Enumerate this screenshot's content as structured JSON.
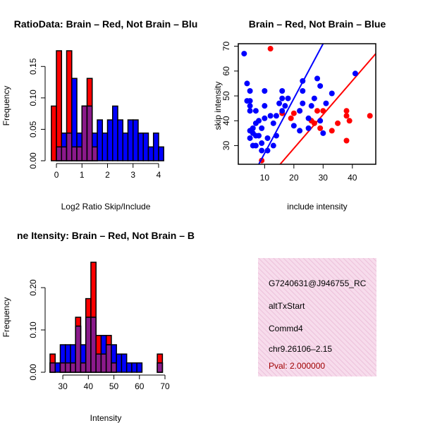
{
  "colors": {
    "red": "#ff0000",
    "blue": "#0000ff",
    "purple": "#8b1a8b",
    "pink_box": "#f5d6ea",
    "pval_text": "#a00000"
  },
  "chart_data": [
    {
      "type": "bar",
      "subtype": "overlaid-histogram",
      "title": "RatioData: Brain – Red, Not Brain – Blu",
      "xlabel": "Log2 Ratio Skip/Include",
      "ylabel": "Frequency",
      "xlim": [
        -0.25,
        4.25
      ],
      "ylim": [
        0,
        0.175
      ],
      "xticks": [
        0,
        1,
        2,
        3,
        4
      ],
      "yticks": [
        0.0,
        0.05,
        0.1,
        0.15
      ],
      "ytick_labels": [
        "0.00",
        "0.05",
        "0.10",
        "0.15"
      ],
      "bin_edges": [
        -0.2,
        0.0,
        0.2,
        0.4,
        0.6,
        0.8,
        1.0,
        1.2,
        1.4,
        1.6,
        1.8,
        2.0,
        2.2,
        2.4,
        2.6,
        2.8,
        3.0,
        3.2,
        3.4,
        3.6,
        3.8,
        4.0,
        4.2
      ],
      "series": [
        {
          "name": "Brain",
          "color": "red",
          "values": [
            0.087,
            0.175,
            0.022,
            0.175,
            0.022,
            0.022,
            0.087,
            0.131,
            0.022,
            0.0,
            0.0,
            0.0,
            0.0,
            0.0,
            0.0,
            0.0,
            0.0,
            0.0,
            0.0,
            0.0,
            0.0,
            0.0
          ]
        },
        {
          "name": "Not Brain",
          "color": "blue",
          "values": [
            0.0,
            0.022,
            0.044,
            0.044,
            0.131,
            0.044,
            0.087,
            0.087,
            0.044,
            0.065,
            0.044,
            0.065,
            0.087,
            0.065,
            0.044,
            0.065,
            0.065,
            0.044,
            0.044,
            0.022,
            0.044,
            0.022
          ]
        }
      ]
    },
    {
      "type": "scatter",
      "title": "Brain – Red, Not Brain – Blue",
      "xlabel": "include intensity",
      "ylabel": "skip intensity",
      "xlim": [
        1,
        48
      ],
      "ylim": [
        22.5,
        71
      ],
      "xticks": [
        10,
        20,
        30,
        40
      ],
      "yticks": [
        30,
        40,
        50,
        60,
        70
      ],
      "series": [
        {
          "name": "Brain",
          "color": "red",
          "points": [
            [
              12,
              69
            ],
            [
              9,
              24
            ],
            [
              19,
              41
            ],
            [
              16,
              43
            ],
            [
              20,
              43
            ],
            [
              22,
              44
            ],
            [
              26,
              40
            ],
            [
              27,
              39
            ],
            [
              28,
              44
            ],
            [
              29,
              37
            ],
            [
              30,
              44
            ],
            [
              33,
              36
            ],
            [
              35,
              39
            ],
            [
              38,
              44
            ],
            [
              38,
              42
            ],
            [
              38,
              32
            ],
            [
              39,
              40
            ],
            [
              46,
              42
            ]
          ],
          "fit_line": [
            [
              12,
              18
            ],
            [
              48,
              67
            ]
          ]
        },
        {
          "name": "Not Brain",
          "color": "blue",
          "points": [
            [
              3,
              67
            ],
            [
              4,
              55
            ],
            [
              4,
              48
            ],
            [
              5,
              44
            ],
            [
              5,
              46
            ],
            [
              5,
              48
            ],
            [
              5,
              52
            ],
            [
              5,
              36
            ],
            [
              5,
              33
            ],
            [
              6,
              30
            ],
            [
              6,
              35
            ],
            [
              6,
              37
            ],
            [
              7,
              30
            ],
            [
              7,
              34
            ],
            [
              7,
              39
            ],
            [
              7,
              44
            ],
            [
              8,
              34
            ],
            [
              8,
              40
            ],
            [
              9,
              28
            ],
            [
              9,
              31
            ],
            [
              9,
              37
            ],
            [
              10,
              41
            ],
            [
              10,
              46
            ],
            [
              10,
              52
            ],
            [
              11,
              28
            ],
            [
              11,
              33
            ],
            [
              12,
              42
            ],
            [
              13,
              39
            ],
            [
              13,
              30
            ],
            [
              14,
              34
            ],
            [
              14,
              42
            ],
            [
              15,
              47
            ],
            [
              16,
              44
            ],
            [
              16,
              49
            ],
            [
              16,
              52
            ],
            [
              17,
              46
            ],
            [
              18,
              49
            ],
            [
              20,
              38
            ],
            [
              22,
              44
            ],
            [
              22,
              36
            ],
            [
              23,
              56
            ],
            [
              23,
              52
            ],
            [
              23,
              47
            ],
            [
              25,
              37
            ],
            [
              25,
              41
            ],
            [
              26,
              46
            ],
            [
              27,
              49
            ],
            [
              28,
              57
            ],
            [
              29,
              54
            ],
            [
              29,
              40
            ],
            [
              30,
              35
            ],
            [
              31,
              47
            ],
            [
              33,
              51
            ],
            [
              41,
              59
            ]
          ],
          "fit_line": [
            [
              8,
              22.5
            ],
            [
              30,
              71
            ]
          ]
        }
      ]
    },
    {
      "type": "bar",
      "subtype": "overlaid-histogram",
      "title": "ne Itensity: Brain – Red, Not Brain – B",
      "xlabel": "Intensity",
      "ylabel": "Frequency",
      "xlim": [
        25,
        70
      ],
      "ylim": [
        0,
        0.26
      ],
      "xticks": [
        30,
        40,
        50,
        60,
        70
      ],
      "yticks": [
        0.0,
        0.1,
        0.2
      ],
      "ytick_labels": [
        "0.00",
        "0.10",
        "0.20"
      ],
      "bin_edges": [
        25,
        27,
        29,
        31,
        33,
        35,
        37,
        39,
        41,
        43,
        45,
        47,
        49,
        51,
        53,
        55,
        57,
        59,
        61,
        63,
        65,
        67,
        69
      ],
      "series": [
        {
          "name": "Brain",
          "color": "red",
          "values": [
            0.043,
            0.0,
            0.022,
            0.022,
            0.022,
            0.13,
            0.022,
            0.174,
            0.26,
            0.087,
            0.043,
            0.087,
            0.022,
            0.0,
            0.0,
            0.0,
            0.0,
            0.0,
            0.0,
            0.0,
            0.0,
            0.043
          ]
        },
        {
          "name": "Not Brain",
          "color": "blue",
          "values": [
            0.022,
            0.022,
            0.065,
            0.065,
            0.065,
            0.109,
            0.065,
            0.13,
            0.13,
            0.043,
            0.087,
            0.065,
            0.065,
            0.043,
            0.043,
            0.022,
            0.022,
            0.022,
            0.0,
            0.0,
            0.0,
            0.022
          ]
        }
      ]
    }
  ],
  "info_panel": {
    "gene_id": "G7240631@J946755_RC",
    "event_type": "altTxStart",
    "gene_name": "Commd4",
    "location": "chr9.26106–2.15",
    "pval": "Pval: 2.000000"
  }
}
